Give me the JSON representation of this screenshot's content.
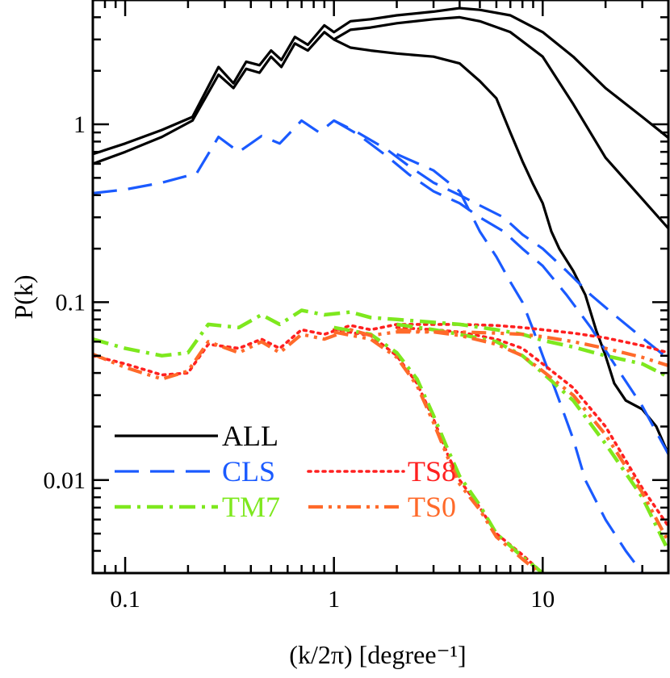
{
  "chart_data": {
    "type": "line",
    "title": "",
    "xlabel": "(k/2π) [degree⁻¹]",
    "ylabel": "P(k)",
    "xscale": "log",
    "yscale": "log",
    "xlim": [
      0.07,
      40
    ],
    "ylim": [
      0.003,
      5
    ],
    "xticks": [
      {
        "value": 0.1,
        "label": "0.1"
      },
      {
        "value": 1,
        "label": "1"
      },
      {
        "value": 10,
        "label": "10"
      }
    ],
    "yticks": [
      {
        "value": 0.01,
        "label": "0.01"
      },
      {
        "value": 0.1,
        "label": "0.1"
      },
      {
        "value": 1,
        "label": "1"
      }
    ],
    "legend_position": "bottom-left",
    "series": [
      {
        "name": "ALL",
        "style": "solid",
        "color": "#000000",
        "legend": true,
        "points": [
          [
            0.07,
            0.68
          ],
          [
            0.1,
            0.78
          ],
          [
            0.15,
            0.93
          ],
          [
            0.21,
            1.1
          ],
          [
            0.28,
            2.1
          ],
          [
            0.33,
            1.7
          ],
          [
            0.38,
            2.25
          ],
          [
            0.44,
            2.15
          ],
          [
            0.5,
            2.6
          ],
          [
            0.56,
            2.3
          ],
          [
            0.65,
            3.1
          ],
          [
            0.75,
            2.8
          ],
          [
            0.9,
            3.6
          ],
          [
            1.0,
            3.3
          ],
          [
            1.2,
            3.8
          ],
          [
            1.5,
            3.9
          ],
          [
            2.0,
            4.1
          ],
          [
            3.0,
            4.3
          ],
          [
            4.0,
            4.5
          ],
          [
            5.0,
            4.4
          ],
          [
            7.0,
            4.1
          ],
          [
            10.0,
            3.3
          ],
          [
            14.0,
            2.4
          ],
          [
            20.0,
            1.6
          ],
          [
            30.0,
            1.1
          ],
          [
            40.0,
            0.84
          ]
        ]
      },
      {
        "name": "ALL_2",
        "style": "solid",
        "color": "#000000",
        "legend": false,
        "points": [
          [
            0.07,
            0.6
          ],
          [
            0.1,
            0.7
          ],
          [
            0.15,
            0.85
          ],
          [
            0.21,
            1.05
          ],
          [
            0.28,
            1.9
          ],
          [
            0.33,
            1.6
          ],
          [
            0.38,
            2.05
          ],
          [
            0.44,
            1.95
          ],
          [
            0.5,
            2.4
          ],
          [
            0.56,
            2.1
          ],
          [
            0.65,
            2.85
          ],
          [
            0.75,
            2.6
          ],
          [
            0.9,
            3.3
          ],
          [
            1.0,
            3.0
          ],
          [
            1.2,
            3.4
          ],
          [
            1.5,
            3.5
          ],
          [
            2.0,
            3.7
          ],
          [
            3.0,
            3.9
          ],
          [
            4.0,
            4.0
          ],
          [
            5.0,
            3.8
          ],
          [
            7.0,
            3.3
          ],
          [
            10.0,
            2.4
          ],
          [
            14.0,
            1.3
          ],
          [
            20.0,
            0.65
          ],
          [
            30.0,
            0.38
          ],
          [
            40.0,
            0.26
          ]
        ]
      },
      {
        "name": "ALL_3",
        "style": "solid",
        "color": "#000000",
        "legend": false,
        "points": [
          [
            1.0,
            3.0
          ],
          [
            1.2,
            2.7
          ],
          [
            1.5,
            2.6
          ],
          [
            2.0,
            2.5
          ],
          [
            3.0,
            2.4
          ],
          [
            4.0,
            2.2
          ],
          [
            5.0,
            1.75
          ],
          [
            6.0,
            1.4
          ],
          [
            7.0,
            0.9
          ],
          [
            8.0,
            0.62
          ],
          [
            9.0,
            0.46
          ],
          [
            10.0,
            0.36
          ],
          [
            11.0,
            0.25
          ],
          [
            12.0,
            0.2
          ],
          [
            14.0,
            0.15
          ],
          [
            16.0,
            0.11
          ],
          [
            18.0,
            0.07
          ],
          [
            20.0,
            0.05
          ],
          [
            22.0,
            0.035
          ],
          [
            25.0,
            0.028
          ],
          [
            30.0,
            0.025
          ],
          [
            35.0,
            0.02
          ],
          [
            40.0,
            0.014
          ]
        ]
      },
      {
        "name": "CLS",
        "style": "dashed",
        "color": "#1a5aff",
        "legend": true,
        "points": [
          [
            0.07,
            0.41
          ],
          [
            0.1,
            0.43
          ],
          [
            0.15,
            0.47
          ],
          [
            0.22,
            0.53
          ],
          [
            0.28,
            0.85
          ],
          [
            0.35,
            0.7
          ],
          [
            0.45,
            0.86
          ],
          [
            0.55,
            0.78
          ],
          [
            0.7,
            1.05
          ],
          [
            0.85,
            0.9
          ],
          [
            1.0,
            1.05
          ],
          [
            1.3,
            0.9
          ],
          [
            1.8,
            0.72
          ],
          [
            2.3,
            0.58
          ],
          [
            3.0,
            0.47
          ],
          [
            4.0,
            0.4
          ],
          [
            5.0,
            0.35
          ],
          [
            6.5,
            0.3
          ],
          [
            8.0,
            0.24
          ],
          [
            10.0,
            0.2
          ],
          [
            13.0,
            0.15
          ],
          [
            17.0,
            0.11
          ],
          [
            22.0,
            0.085
          ],
          [
            30.0,
            0.063
          ],
          [
            40.0,
            0.048
          ]
        ]
      },
      {
        "name": "CLS_2",
        "style": "dashed",
        "color": "#1a5aff",
        "legend": false,
        "points": [
          [
            1.0,
            1.05
          ],
          [
            1.3,
            0.88
          ],
          [
            1.8,
            0.66
          ],
          [
            2.3,
            0.52
          ],
          [
            3.0,
            0.42
          ],
          [
            4.0,
            0.36
          ],
          [
            5.0,
            0.3
          ],
          [
            6.5,
            0.25
          ],
          [
            8.0,
            0.2
          ],
          [
            10.0,
            0.16
          ],
          [
            13.0,
            0.11
          ],
          [
            17.0,
            0.072
          ],
          [
            22.0,
            0.045
          ],
          [
            30.0,
            0.026
          ],
          [
            40.0,
            0.014
          ]
        ]
      },
      {
        "name": "CLS_3",
        "style": "dashed",
        "color": "#1a5aff",
        "legend": false,
        "points": [
          [
            2.0,
            0.68
          ],
          [
            3.0,
            0.55
          ],
          [
            4.0,
            0.42
          ],
          [
            5.0,
            0.25
          ],
          [
            6.0,
            0.18
          ],
          [
            7.0,
            0.13
          ],
          [
            8.0,
            0.1
          ],
          [
            9.0,
            0.07
          ],
          [
            10.0,
            0.05
          ],
          [
            12.0,
            0.028
          ],
          [
            14.0,
            0.017
          ],
          [
            16.0,
            0.01
          ],
          [
            20.0,
            0.006
          ],
          [
            25.0,
            0.004
          ],
          [
            30.0,
            0.003
          ]
        ]
      },
      {
        "name": "TS8",
        "style": "dotted",
        "color": "#ff2020",
        "legend": true,
        "points": [
          [
            0.07,
            0.05
          ],
          [
            0.1,
            0.045
          ],
          [
            0.15,
            0.039
          ],
          [
            0.2,
            0.04
          ],
          [
            0.25,
            0.058
          ],
          [
            0.35,
            0.055
          ],
          [
            0.45,
            0.062
          ],
          [
            0.55,
            0.055
          ],
          [
            0.7,
            0.07
          ],
          [
            0.9,
            0.066
          ],
          [
            1.2,
            0.074
          ],
          [
            1.5,
            0.07
          ],
          [
            2.0,
            0.075
          ],
          [
            3.0,
            0.075
          ],
          [
            4.0,
            0.075
          ],
          [
            6.0,
            0.074
          ],
          [
            8.0,
            0.072
          ],
          [
            10.0,
            0.07
          ],
          [
            14.0,
            0.067
          ],
          [
            20.0,
            0.063
          ],
          [
            30.0,
            0.057
          ],
          [
            40.0,
            0.052
          ]
        ]
      },
      {
        "name": "TS8_2",
        "style": "dotted",
        "color": "#ff2020",
        "legend": false,
        "points": [
          [
            2.0,
            0.072
          ],
          [
            3.0,
            0.07
          ],
          [
            4.0,
            0.068
          ],
          [
            6.0,
            0.062
          ],
          [
            8.0,
            0.055
          ],
          [
            10.0,
            0.045
          ],
          [
            14.0,
            0.033
          ],
          [
            20.0,
            0.02
          ],
          [
            30.0,
            0.009
          ],
          [
            40.0,
            0.0055
          ]
        ]
      },
      {
        "name": "TS8_3",
        "style": "dotted",
        "color": "#ff2020",
        "legend": false,
        "points": [
          [
            1.0,
            0.07
          ],
          [
            1.5,
            0.065
          ],
          [
            2.0,
            0.05
          ],
          [
            2.5,
            0.035
          ],
          [
            3.0,
            0.022
          ],
          [
            3.5,
            0.014
          ],
          [
            4.0,
            0.01
          ],
          [
            5.0,
            0.007
          ],
          [
            6.0,
            0.005
          ],
          [
            8.0,
            0.0038
          ],
          [
            10.0,
            0.003
          ]
        ]
      },
      {
        "name": "TM7",
        "style": "dashdot",
        "color": "#7ee81e",
        "legend": true,
        "points": [
          [
            0.07,
            0.062
          ],
          [
            0.1,
            0.055
          ],
          [
            0.15,
            0.05
          ],
          [
            0.2,
            0.052
          ],
          [
            0.25,
            0.075
          ],
          [
            0.35,
            0.072
          ],
          [
            0.45,
            0.085
          ],
          [
            0.55,
            0.075
          ],
          [
            0.7,
            0.09
          ],
          [
            0.9,
            0.085
          ],
          [
            1.2,
            0.088
          ],
          [
            1.5,
            0.082
          ],
          [
            2.0,
            0.08
          ],
          [
            3.0,
            0.077
          ],
          [
            4.0,
            0.075
          ],
          [
            6.0,
            0.07
          ],
          [
            8.0,
            0.066
          ],
          [
            10.0,
            0.061
          ],
          [
            14.0,
            0.056
          ],
          [
            20.0,
            0.05
          ],
          [
            30.0,
            0.045
          ],
          [
            40.0,
            0.038
          ]
        ]
      },
      {
        "name": "TM7_2",
        "style": "dashdot",
        "color": "#7ee81e",
        "legend": false,
        "points": [
          [
            2.0,
            0.075
          ],
          [
            3.0,
            0.07
          ],
          [
            4.0,
            0.066
          ],
          [
            6.0,
            0.06
          ],
          [
            8.0,
            0.05
          ],
          [
            10.0,
            0.04
          ],
          [
            14.0,
            0.028
          ],
          [
            20.0,
            0.016
          ],
          [
            30.0,
            0.008
          ],
          [
            40.0,
            0.004
          ]
        ]
      },
      {
        "name": "TM7_3",
        "style": "dashdot",
        "color": "#7ee81e",
        "legend": false,
        "points": [
          [
            1.0,
            0.072
          ],
          [
            1.5,
            0.066
          ],
          [
            2.0,
            0.052
          ],
          [
            2.5,
            0.037
          ],
          [
            3.0,
            0.023
          ],
          [
            3.5,
            0.015
          ],
          [
            4.0,
            0.0105
          ],
          [
            5.0,
            0.0072
          ],
          [
            6.0,
            0.005
          ],
          [
            8.0,
            0.0037
          ],
          [
            10.0,
            0.003
          ]
        ]
      },
      {
        "name": "TS0",
        "style": "dashdotdot",
        "color": "#ff6a2a",
        "legend": true,
        "points": [
          [
            0.07,
            0.051
          ],
          [
            0.1,
            0.043
          ],
          [
            0.15,
            0.037
          ],
          [
            0.2,
            0.041
          ],
          [
            0.25,
            0.06
          ],
          [
            0.35,
            0.052
          ],
          [
            0.45,
            0.06
          ],
          [
            0.55,
            0.052
          ],
          [
            0.7,
            0.066
          ],
          [
            0.9,
            0.062
          ],
          [
            1.2,
            0.07
          ],
          [
            1.5,
            0.065
          ],
          [
            2.0,
            0.068
          ],
          [
            3.0,
            0.068
          ],
          [
            4.0,
            0.068
          ],
          [
            6.0,
            0.067
          ],
          [
            8.0,
            0.066
          ],
          [
            10.0,
            0.064
          ],
          [
            14.0,
            0.06
          ],
          [
            20.0,
            0.055
          ],
          [
            30.0,
            0.049
          ],
          [
            40.0,
            0.044
          ]
        ]
      },
      {
        "name": "TS0_2",
        "style": "dashdotdot",
        "color": "#ff6a2a",
        "legend": false,
        "points": [
          [
            2.0,
            0.07
          ],
          [
            3.0,
            0.068
          ],
          [
            4.0,
            0.065
          ],
          [
            6.0,
            0.058
          ],
          [
            8.0,
            0.05
          ],
          [
            10.0,
            0.041
          ],
          [
            14.0,
            0.03
          ],
          [
            20.0,
            0.018
          ],
          [
            30.0,
            0.0085
          ],
          [
            40.0,
            0.0045
          ]
        ]
      },
      {
        "name": "TS0_3",
        "style": "dashdotdot",
        "color": "#ff6a2a",
        "legend": false,
        "points": [
          [
            1.0,
            0.068
          ],
          [
            1.5,
            0.062
          ],
          [
            2.0,
            0.049
          ],
          [
            2.5,
            0.034
          ],
          [
            3.0,
            0.021
          ],
          [
            3.5,
            0.0135
          ],
          [
            4.0,
            0.0095
          ],
          [
            5.0,
            0.0068
          ],
          [
            6.0,
            0.0048
          ],
          [
            8.0,
            0.0036
          ],
          [
            10.0,
            0.0029
          ]
        ]
      }
    ],
    "legend": [
      {
        "label": "ALL",
        "style": "solid",
        "color": "#000000"
      },
      {
        "label": "CLS",
        "style": "dashed",
        "color": "#1a5aff"
      },
      {
        "label": "TS8",
        "style": "dotted",
        "color": "#ff2020"
      },
      {
        "label": "TM7",
        "style": "dashdot",
        "color": "#7ee81e"
      },
      {
        "label": "TS0",
        "style": "dashdotdot",
        "color": "#ff6a2a"
      }
    ]
  }
}
